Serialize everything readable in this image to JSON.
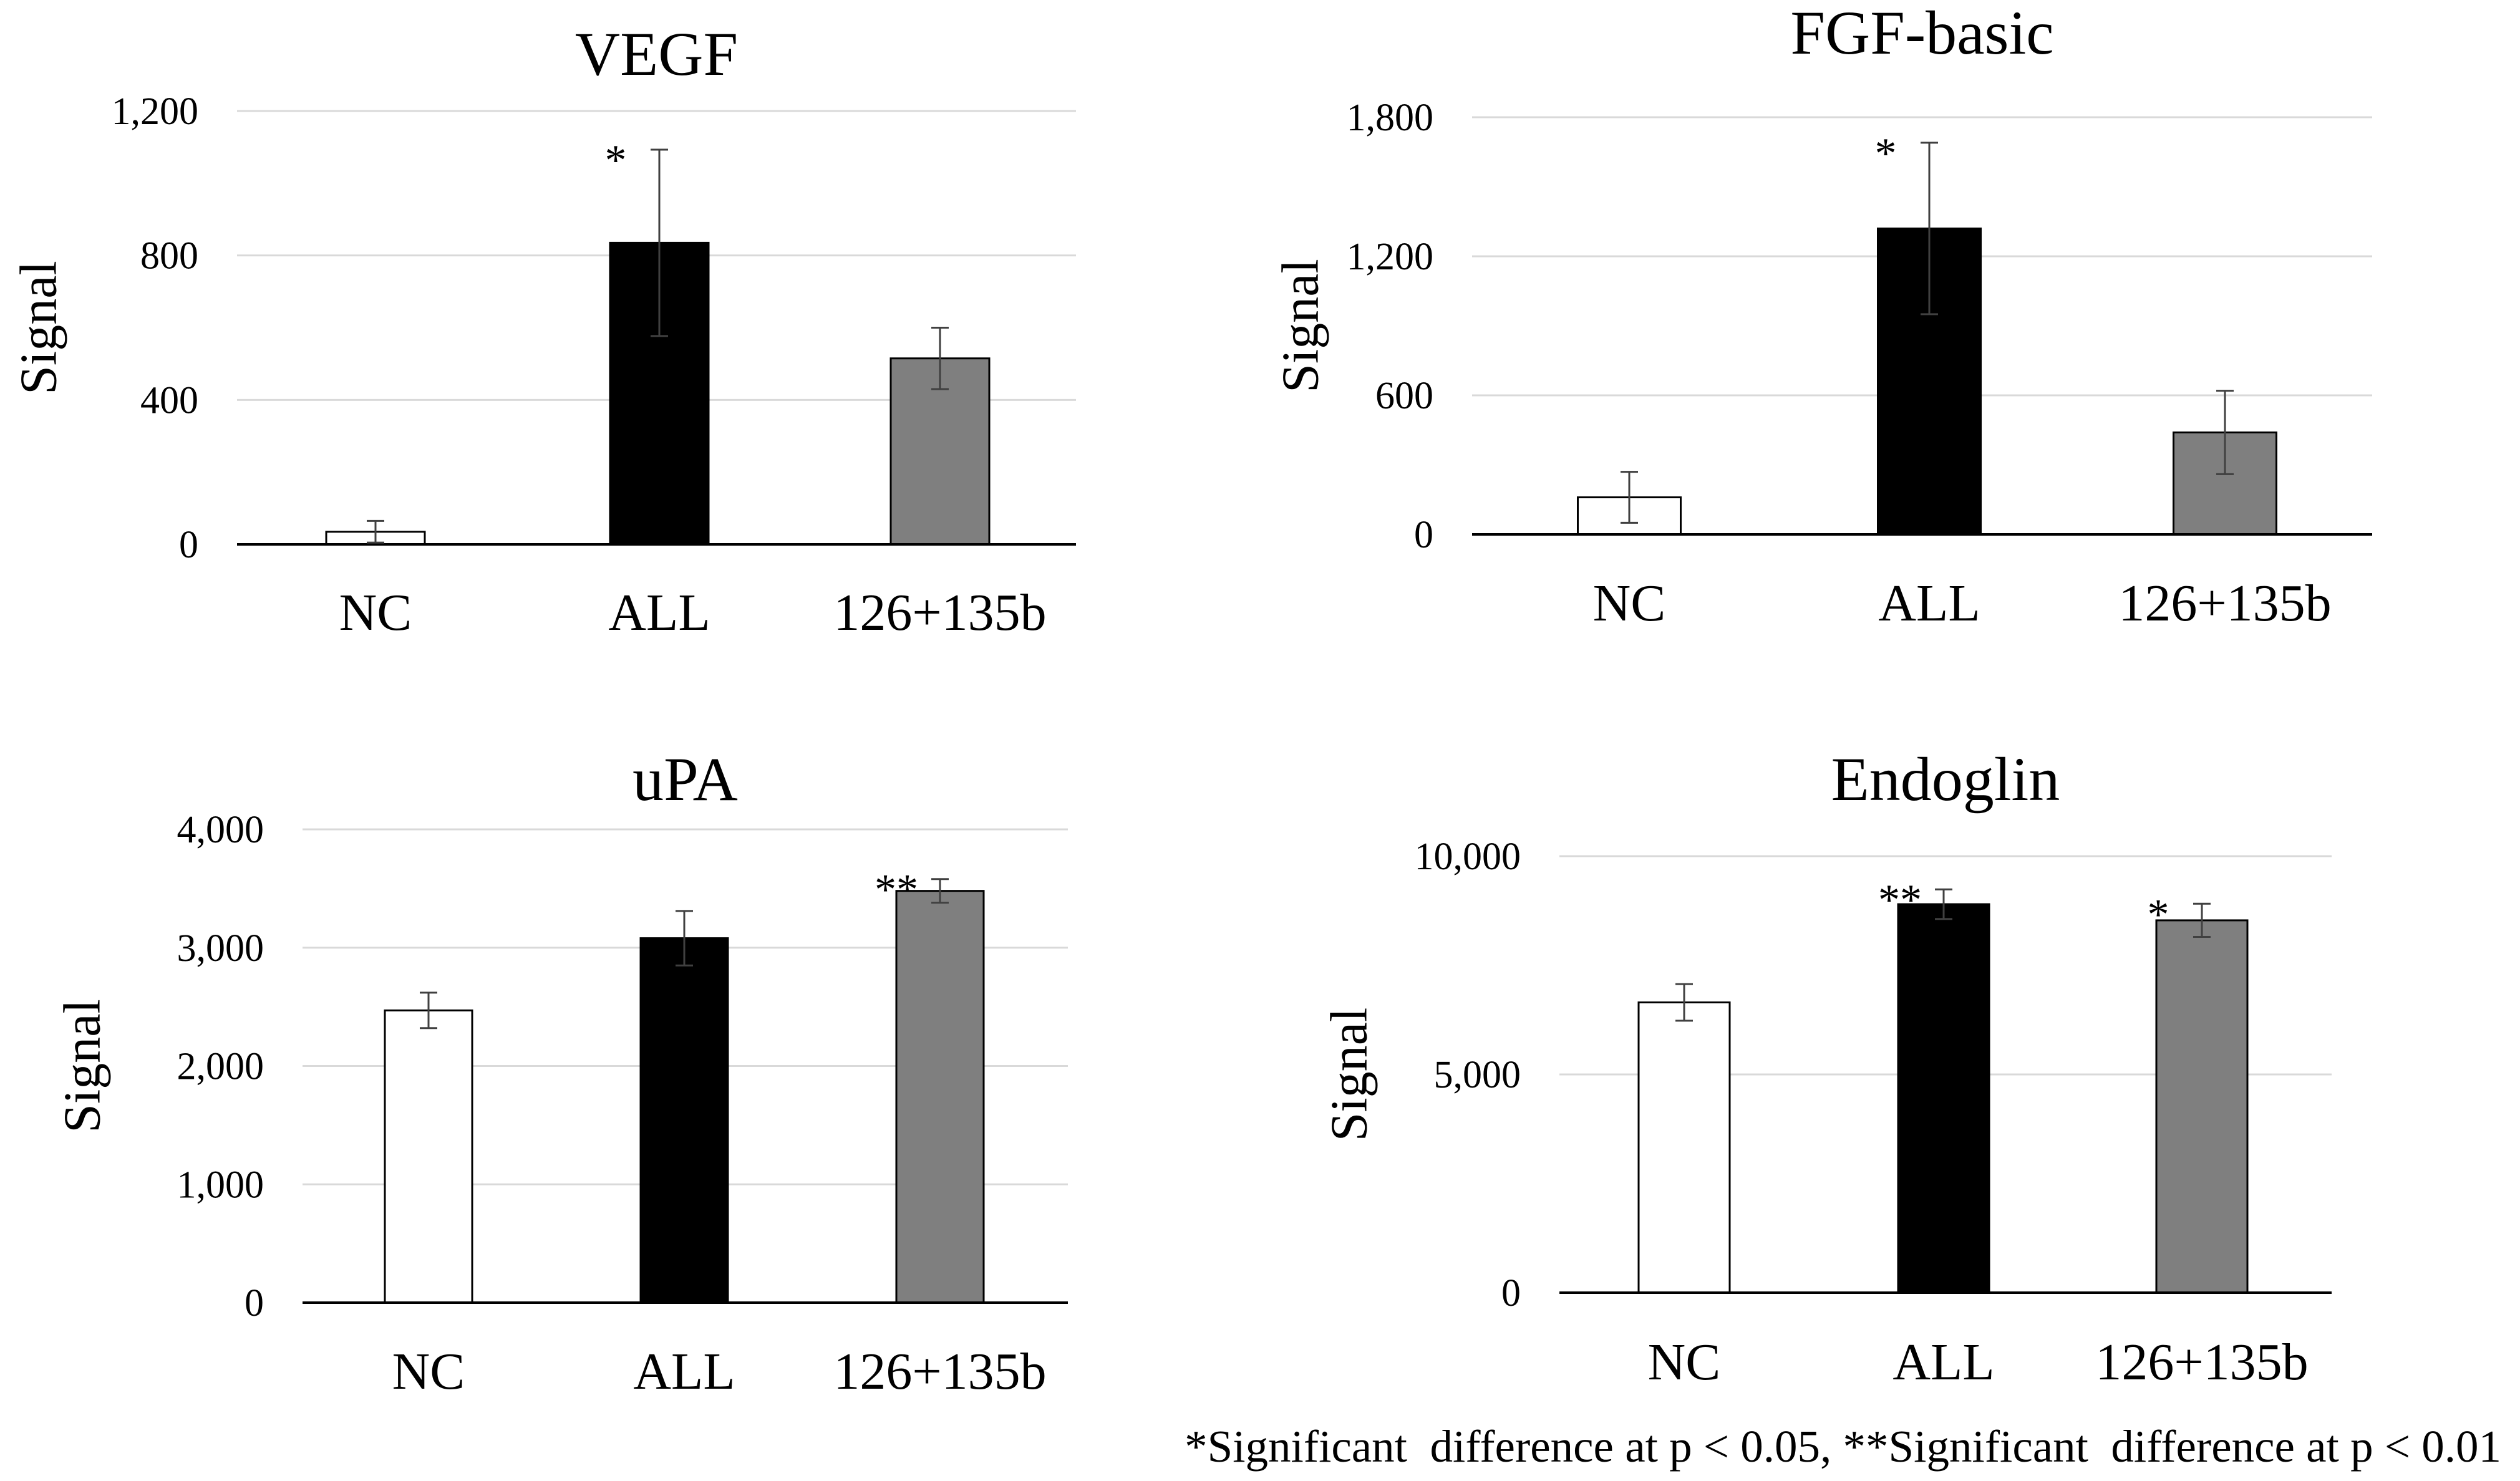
{
  "figure": {
    "footnote": "*Significant  difference at p < 0.05, **Significant  difference at p < 0.01"
  },
  "chart_data": [
    {
      "type": "bar",
      "title": "VEGF",
      "ylabel": "Signal",
      "xlabel": "",
      "categories": [
        "NC",
        "ALL",
        "126+135b"
      ],
      "values": [
        35,
        835,
        515
      ],
      "errors": [
        30,
        258,
        85
      ],
      "significance": [
        "",
        "*",
        ""
      ],
      "bar_colors": [
        "#ffffff",
        "#000000",
        "#7f7f7f"
      ],
      "ylim": [
        0,
        1200
      ],
      "yticks": [
        0,
        400,
        800,
        1200
      ],
      "ytick_labels": [
        "0",
        "400",
        "800",
        "1,200"
      ],
      "grid": true
    },
    {
      "type": "bar",
      "title": "FGF-basic",
      "ylabel": "Signal",
      "xlabel": "",
      "categories": [
        "NC",
        "ALL",
        "126+135b"
      ],
      "values": [
        160,
        1320,
        440
      ],
      "errors": [
        110,
        370,
        180
      ],
      "significance": [
        "",
        "*",
        ""
      ],
      "bar_colors": [
        "#ffffff",
        "#000000",
        "#7f7f7f"
      ],
      "ylim": [
        0,
        1800
      ],
      "yticks": [
        0,
        600,
        1200,
        1800
      ],
      "ytick_labels": [
        "0",
        "600",
        "1,200",
        "1,800"
      ],
      "grid": true
    },
    {
      "type": "bar",
      "title": "uPA",
      "ylabel": "Signal",
      "xlabel": "",
      "categories": [
        "NC",
        "ALL",
        "126+135b"
      ],
      "values": [
        2470,
        3080,
        3480
      ],
      "errors": [
        150,
        230,
        100
      ],
      "significance": [
        "",
        "",
        "**"
      ],
      "bar_colors": [
        "#ffffff",
        "#000000",
        "#7f7f7f"
      ],
      "ylim": [
        0,
        4000
      ],
      "yticks": [
        0,
        1000,
        2000,
        3000,
        4000
      ],
      "ytick_labels": [
        "0",
        "1,000",
        "2,000",
        "3,000",
        "4,000"
      ],
      "grid": true
    },
    {
      "type": "bar",
      "title": "Endoglin",
      "ylabel": "Signal",
      "xlabel": "",
      "categories": [
        "NC",
        "ALL",
        "126+135b"
      ],
      "values": [
        6650,
        8900,
        8530
      ],
      "errors": [
        420,
        340,
        380
      ],
      "significance": [
        "",
        "**",
        "*"
      ],
      "bar_colors": [
        "#ffffff",
        "#000000",
        "#7f7f7f"
      ],
      "ylim": [
        0,
        10000
      ],
      "yticks": [
        0,
        5000,
        10000
      ],
      "ytick_labels": [
        "0",
        "5,000",
        "10,000"
      ],
      "grid": true
    }
  ]
}
